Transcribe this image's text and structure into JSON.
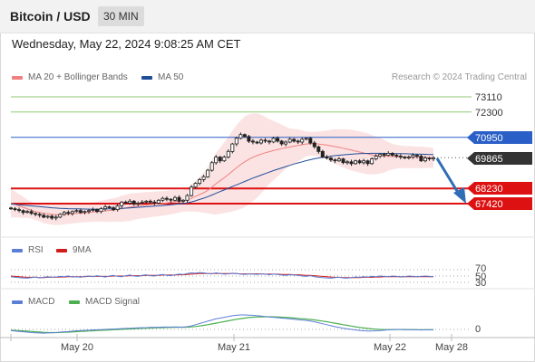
{
  "header": {
    "title": "Bitcoin / USD",
    "timeframe": "30 MIN",
    "datetime": "Wednesday, May 22, 2024 9:08:25 AM CET"
  },
  "legend": {
    "ma20": "MA 20 + Bollinger Bands",
    "ma50": "MA 50",
    "credit": "Research © 2024 Trading Central",
    "rsi": "RSI",
    "rsi_ma": "9MA",
    "macd": "MACD",
    "macd_signal": "MACD Signal"
  },
  "colors": {
    "ma20": "#f08080",
    "ma50": "#1f4e99",
    "resistance": "#8fc970",
    "pivot": "#2a5fc7",
    "support": "#dd1111",
    "current": "#333333",
    "rsi": "#5b7fd6",
    "rsi_ma": "#d21b1b",
    "macd": "#5b7fd6",
    "macd_signal": "#4caf50"
  },
  "levels": {
    "r2": "73110",
    "r1": "72300",
    "pivot": "70950",
    "current": "69865",
    "s1": "68230",
    "s2": "67420"
  },
  "rsi_axis": [
    "70",
    "50",
    "30"
  ],
  "macd_axis": [
    "0"
  ],
  "x_axis": [
    "May 20",
    "May 21",
    "May 22",
    "May 28"
  ],
  "chart_data": [
    {
      "type": "candlestick",
      "title": "Bitcoin / USD",
      "ylim": [
        66800,
        73800
      ],
      "levels": [
        {
          "label": "73110",
          "value": 73110,
          "kind": "resistance"
        },
        {
          "label": "72300",
          "value": 72300,
          "kind": "resistance"
        },
        {
          "label": "70950",
          "value": 70950,
          "kind": "pivot"
        },
        {
          "label": "69865",
          "value": 69865,
          "kind": "last"
        },
        {
          "label": "68230",
          "value": 68230,
          "kind": "support"
        },
        {
          "label": "67420",
          "value": 67420,
          "kind": "support"
        }
      ],
      "x_ticks": [
        "May 20",
        "May 21",
        "May 22",
        "May 28"
      ],
      "close": [
        67150,
        67100,
        67050,
        66950,
        67000,
        66900,
        66850,
        66800,
        66700,
        66750,
        66650,
        66700,
        66850,
        66950,
        66900,
        67000,
        67050,
        66950,
        67000,
        67050,
        67100,
        67000,
        67150,
        67250,
        67200,
        67100,
        67300,
        67500,
        67450,
        67550,
        67400,
        67450,
        67500,
        67550,
        67500,
        67450,
        67600,
        67700,
        67650,
        67600,
        67750,
        67550,
        67600,
        67850,
        68300,
        68500,
        68700,
        68850,
        69200,
        69600,
        69900,
        69700,
        69900,
        70200,
        70600,
        70900,
        71100,
        71000,
        70750,
        70700,
        70650,
        70800,
        70750,
        70700,
        70900,
        70750,
        70600,
        70700,
        70850,
        70750,
        70700,
        70850,
        70900,
        70650,
        70450,
        70200,
        69900,
        69850,
        69750,
        69700,
        69800,
        69600,
        69650,
        69550,
        69700,
        69600,
        69700,
        69550,
        69800,
        69950,
        70050,
        70000,
        70100,
        70000,
        69950,
        69900,
        69850,
        69900,
        70000,
        69950,
        69700,
        69850,
        69800,
        69865
      ],
      "ma20": [
        67450,
        67380,
        67300,
        67220,
        67150,
        67070,
        67000,
        66950,
        66900,
        66880,
        66850,
        66830,
        66830,
        66850,
        66860,
        66880,
        66900,
        66920,
        66930,
        66950,
        66970,
        66990,
        67010,
        67030,
        67060,
        67080,
        67110,
        67150,
        67190,
        67230,
        67270,
        67300,
        67330,
        67350,
        67370,
        67390,
        67410,
        67430,
        67460,
        67490,
        67520,
        67540,
        67560,
        67620,
        67700,
        67800,
        67900,
        68000,
        68130,
        68300,
        68480,
        68640,
        68800,
        68970,
        69150,
        69330,
        69500,
        69650,
        69780,
        69890,
        69980,
        70060,
        70130,
        70190,
        70250,
        70300,
        70350,
        70400,
        70440,
        70480,
        70520,
        70560,
        70600,
        70610,
        70610,
        70600,
        70570,
        70540,
        70500,
        70460,
        70420,
        70370,
        70320,
        70270,
        70220,
        70170,
        70120,
        70070,
        70020,
        69990,
        69970,
        69950,
        69940,
        69930,
        69920,
        69910,
        69900,
        69895,
        69890,
        69885,
        69880,
        69875,
        69870,
        69868
      ],
      "ma50": [
        67400,
        67380,
        67360,
        67340,
        67320,
        67300,
        67280,
        67260,
        67240,
        67220,
        67200,
        67185,
        67170,
        67160,
        67150,
        67145,
        67140,
        67135,
        67130,
        67128,
        67125,
        67125,
        67128,
        67132,
        67138,
        67145,
        67155,
        67165,
        67180,
        67195,
        67210,
        67225,
        67240,
        67255,
        67270,
        67285,
        67300,
        67320,
        67340,
        67360,
        67380,
        67400,
        67420,
        67460,
        67510,
        67570,
        67640,
        67710,
        67790,
        67880,
        67970,
        68060,
        68150,
        68240,
        68330,
        68420,
        68510,
        68600,
        68690,
        68780,
        68860,
        68940,
        69020,
        69100,
        69180,
        69250,
        69320,
        69390,
        69460,
        69530,
        69590,
        69650,
        69710,
        69760,
        69810,
        69850,
        69890,
        69920,
        69950,
        69975,
        70000,
        70020,
        70040,
        70055,
        70070,
        70080,
        70090,
        70095,
        70100,
        70100,
        70100,
        70098,
        70095,
        70090,
        70085,
        70080,
        70075,
        70070,
        70064,
        70058,
        70052,
        70046,
        70040,
        70034
      ]
    },
    {
      "type": "line",
      "title": "RSI",
      "ylim": [
        20,
        80
      ],
      "y_ticks": [
        70,
        50,
        30
      ],
      "series": [
        {
          "name": "RSI",
          "values": [
            48,
            46,
            45,
            44,
            43,
            45,
            47,
            44,
            46,
            48,
            46,
            47,
            49,
            48,
            50,
            47,
            48,
            46,
            49,
            50,
            48,
            51,
            49,
            47,
            50,
            52,
            49,
            48,
            51,
            53,
            50,
            49,
            52,
            54,
            51,
            50,
            53,
            55,
            52,
            51,
            54,
            56,
            55,
            58,
            60,
            59,
            61,
            60,
            58,
            57,
            60,
            58,
            56,
            57,
            59,
            58,
            56,
            55,
            57,
            56,
            55,
            57,
            56,
            54,
            56,
            55,
            53,
            52,
            54,
            53,
            52,
            50,
            49,
            51,
            48,
            46,
            45,
            44,
            43,
            45,
            46,
            44,
            43,
            45,
            47,
            46,
            48,
            47,
            49,
            48,
            50,
            49,
            48,
            50,
            49,
            47,
            48,
            50,
            49,
            48,
            49,
            50,
            49,
            48
          ]
        },
        {
          "name": "9MA",
          "values": [
            50,
            49,
            48,
            47,
            46,
            46,
            46,
            45,
            45,
            46,
            46,
            46,
            47,
            47,
            48,
            48,
            48,
            48,
            48,
            49,
            49,
            49,
            49,
            49,
            49,
            50,
            50,
            50,
            50,
            51,
            51,
            51,
            51,
            52,
            52,
            52,
            52,
            53,
            53,
            53,
            53,
            54,
            54,
            55,
            56,
            57,
            58,
            58,
            58,
            58,
            58,
            58,
            58,
            58,
            58,
            58,
            57,
            57,
            57,
            57,
            57,
            57,
            56,
            56,
            56,
            56,
            55,
            55,
            55,
            54,
            54,
            53,
            52,
            52,
            51,
            50,
            49,
            48,
            47,
            46,
            46,
            45,
            45,
            45,
            45,
            45,
            46,
            46,
            46,
            47,
            47,
            48,
            48,
            48,
            48,
            48,
            48,
            48,
            48,
            48,
            48,
            48,
            48,
            48
          ]
        }
      ]
    },
    {
      "type": "line",
      "title": "MACD",
      "ylim": [
        -250,
        500
      ],
      "y_ticks": [
        0
      ],
      "series": [
        {
          "name": "MACD",
          "values": [
            -30,
            -40,
            -50,
            -60,
            -70,
            -80,
            -85,
            -90,
            -95,
            -90,
            -85,
            -80,
            -70,
            -60,
            -55,
            -45,
            -35,
            -30,
            -25,
            -20,
            -15,
            -10,
            -5,
            0,
            5,
            10,
            15,
            20,
            25,
            30,
            35,
            40,
            45,
            45,
            50,
            50,
            55,
            60,
            60,
            60,
            65,
            60,
            60,
            70,
            90,
            120,
            150,
            180,
            210,
            240,
            270,
            290,
            310,
            330,
            350,
            360,
            370,
            370,
            365,
            360,
            350,
            340,
            330,
            320,
            310,
            300,
            290,
            280,
            270,
            260,
            250,
            240,
            230,
            215,
            195,
            170,
            145,
            120,
            95,
            70,
            50,
            30,
            15,
            0,
            -15,
            -25,
            -35,
            -40,
            -40,
            -35,
            -30,
            -20,
            -10,
            -5,
            0,
            0,
            -5,
            -5,
            -10,
            -10,
            -15,
            -10,
            -10,
            -10
          ]
        },
        {
          "name": "MACD Signal",
          "values": [
            -20,
            -25,
            -30,
            -38,
            -45,
            -52,
            -60,
            -67,
            -74,
            -78,
            -80,
            -80,
            -78,
            -74,
            -70,
            -65,
            -58,
            -52,
            -46,
            -40,
            -34,
            -28,
            -23,
            -18,
            -13,
            -8,
            -3,
            2,
            7,
            12,
            17,
            22,
            27,
            31,
            35,
            38,
            41,
            45,
            48,
            50,
            53,
            54,
            55,
            58,
            64,
            74,
            87,
            103,
            120,
            140,
            160,
            180,
            200,
            220,
            240,
            258,
            275,
            290,
            302,
            312,
            318,
            322,
            324,
            324,
            322,
            318,
            313,
            307,
            300,
            292,
            283,
            274,
            265,
            255,
            243,
            229,
            213,
            196,
            178,
            159,
            140,
            121,
            103,
            86,
            68,
            52,
            38,
            25,
            14,
            6,
            0,
            -4,
            -5,
            -5,
            -4,
            -3,
            -3,
            -4,
            -5,
            -6,
            -8,
            -9,
            -9,
            -9
          ]
        }
      ]
    }
  ]
}
